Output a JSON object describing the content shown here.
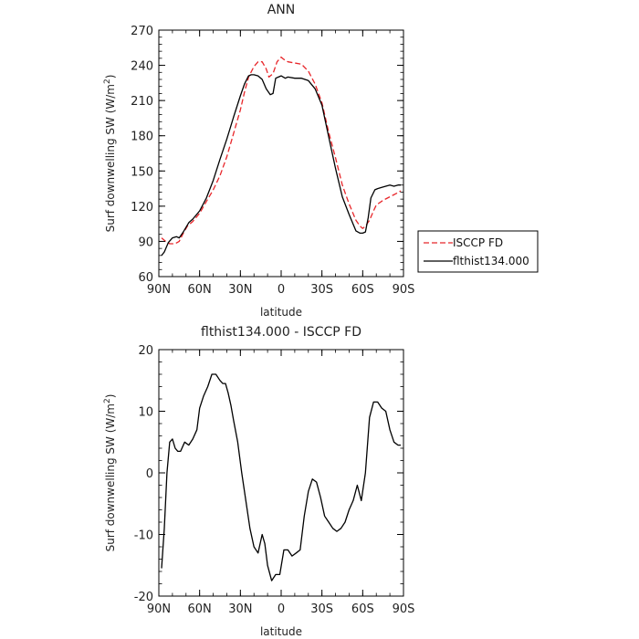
{
  "figure_titles": {
    "top": "ANN",
    "bottom": "flthist134.000 - ISCCP FD"
  },
  "chart_data": [
    {
      "type": "line",
      "title": "ANN",
      "xlabel": "latitude",
      "ylabel": "Surf downwelling SW (W/m2)",
      "xlim": [
        90,
        -90
      ],
      "ylim": [
        60,
        270
      ],
      "yticks": [
        60,
        90,
        120,
        150,
        180,
        210,
        240,
        270
      ],
      "xticks": [
        90,
        60,
        30,
        0,
        -30,
        -60,
        -90
      ],
      "xtick_labels": [
        "90N",
        "60N",
        "30N",
        "0",
        "30S",
        "60S",
        "90S"
      ],
      "legend": {
        "placement": "right",
        "entries": [
          "ISCCP FD",
          "flthist134.000"
        ]
      },
      "series": [
        {
          "name": "ISCCP FD",
          "color": "#e8262a",
          "dash": "dashed",
          "x": [
            88,
            85,
            82,
            78,
            75,
            72,
            69,
            65,
            60,
            55,
            50,
            45,
            40,
            35,
            30,
            27,
            24,
            20,
            17,
            14,
            11,
            9,
            6,
            3,
            0,
            -2,
            -5,
            -10,
            -15,
            -20,
            -25,
            -30,
            -35,
            -40,
            -45,
            -50,
            -55,
            -58,
            -60,
            -62,
            -65,
            -68,
            -70,
            -75,
            -80,
            -85,
            -88
          ],
          "y": [
            93,
            90,
            88,
            88,
            90,
            97,
            103,
            107,
            114,
            124,
            134,
            146,
            162,
            182,
            202,
            217,
            230,
            239,
            243,
            243,
            237,
            230,
            233,
            243,
            247,
            245,
            243,
            242,
            241,
            235,
            224,
            208,
            183,
            161,
            138,
            122,
            108,
            103,
            101,
            103,
            108,
            116,
            121,
            125,
            128,
            131,
            133
          ]
        },
        {
          "name": "flthist134.000",
          "color": "#000000",
          "dash": "solid",
          "x": [
            88,
            86,
            83,
            80,
            77,
            75,
            72,
            68,
            65,
            60,
            55,
            50,
            45,
            40,
            35,
            30,
            27,
            24,
            22,
            20,
            17,
            14,
            11,
            8,
            6,
            4,
            2,
            0,
            -3,
            -5,
            -10,
            -15,
            -20,
            -25,
            -30,
            -35,
            -40,
            -45,
            -50,
            -55,
            -58,
            -60,
            -62,
            -64,
            -66,
            -69,
            -71,
            -74,
            -77,
            -80,
            -83,
            -86,
            -88
          ],
          "y": [
            78,
            81,
            89,
            93,
            94,
            93,
            98,
            106,
            109,
            116,
            127,
            142,
            160,
            177,
            196,
            214,
            224,
            231,
            232,
            232,
            231,
            228,
            220,
            215,
            216,
            229,
            230,
            231,
            229,
            230,
            229,
            229,
            227,
            220,
            206,
            179,
            152,
            128,
            113,
            99,
            97,
            97,
            98,
            110,
            127,
            134,
            135,
            136,
            137,
            138,
            137,
            138,
            138
          ]
        }
      ]
    },
    {
      "type": "line",
      "title": "flthist134.000 - ISCCP FD",
      "xlabel": "latitude",
      "ylabel": "Surf downwelling SW (W/m2)",
      "xlim": [
        90,
        -90
      ],
      "ylim": [
        -20,
        20
      ],
      "yticks": [
        -20,
        -10,
        0,
        10,
        20
      ],
      "xticks": [
        90,
        60,
        30,
        0,
        -30,
        -60,
        -90
      ],
      "xtick_labels": [
        "90N",
        "60N",
        "30N",
        "0",
        "30S",
        "60S",
        "90S"
      ],
      "series": [
        {
          "color": "#000000",
          "dash": "solid",
          "x": [
            88,
            86,
            84,
            82,
            80,
            78,
            76,
            74,
            71,
            68,
            65,
            62,
            60,
            57,
            54,
            51,
            48,
            45,
            43,
            41,
            39,
            37,
            35,
            32,
            29,
            26,
            23,
            20,
            17,
            14,
            12,
            10,
            7,
            4,
            1,
            -2,
            -5,
            -8,
            -11,
            -14,
            -17,
            -20,
            -23,
            -26,
            -29,
            -32,
            -35,
            -38,
            -41,
            -44,
            -47,
            -50,
            -53,
            -56,
            -59,
            -62,
            -65,
            -68,
            -71,
            -74,
            -77,
            -80,
            -83,
            -86,
            -88
          ],
          "y": [
            -15.5,
            -9,
            0,
            5,
            5.5,
            4,
            3.5,
            3.5,
            5,
            4.5,
            5.5,
            7,
            10.5,
            12.5,
            14,
            16,
            16,
            15,
            14.5,
            14.5,
            13,
            11,
            8.5,
            5,
            0,
            -4.5,
            -9,
            -12,
            -13,
            -10,
            -11.5,
            -15,
            -17.5,
            -16.5,
            -16.5,
            -12.5,
            -12.5,
            -13.5,
            -13,
            -12.5,
            -7,
            -3,
            -1,
            -1.5,
            -4,
            -7,
            -8,
            -9,
            -9.5,
            -9,
            -8,
            -6,
            -4.5,
            -2,
            -4.5,
            0,
            9,
            11.5,
            11.5,
            10.5,
            10,
            7,
            5,
            4.5,
            4.5
          ]
        }
      ]
    }
  ]
}
